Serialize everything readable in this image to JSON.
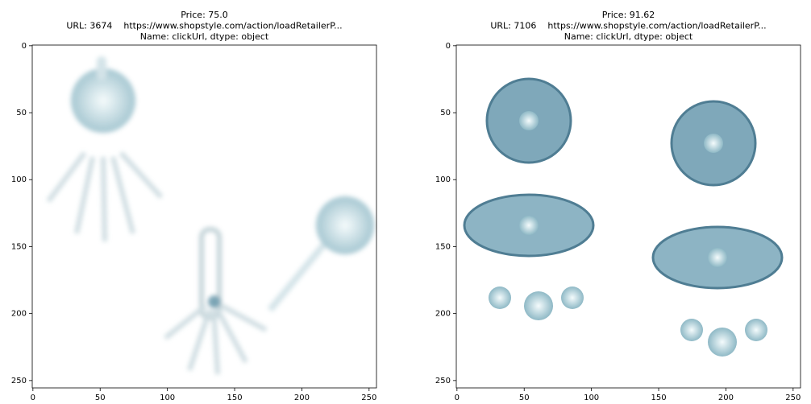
{
  "chart_data": [
    {
      "type": "image",
      "title": [
        "Price: 75.0",
        "URL: 3674    https://www.shopstyle.com/action/loadRetailerP...",
        "Name: clickUrl, dtype: object"
      ],
      "xlim": [
        -0.5,
        255.5
      ],
      "ylim": [
        255.5,
        -0.5
      ],
      "xticks": [
        0,
        50,
        100,
        150,
        200,
        250
      ],
      "yticks": [
        0,
        50,
        100,
        150,
        200,
        250
      ]
    },
    {
      "type": "image",
      "title": [
        "Price: 91.62",
        "URL: 7106    https://www.shopstyle.com/action/loadRetailerP...",
        "Name: clickUrl, dtype: object"
      ],
      "xlim": [
        -0.5,
        255.5
      ],
      "ylim": [
        255.5,
        -0.5
      ],
      "xticks": [
        0,
        50,
        100,
        150,
        200,
        250
      ],
      "yticks": [
        0,
        50,
        100,
        150,
        200,
        250
      ]
    }
  ]
}
